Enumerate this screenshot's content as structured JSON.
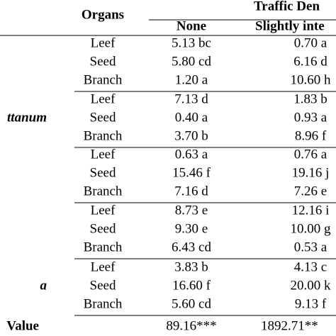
{
  "header": {
    "organs": "Organs",
    "traffic": "Traffic Den",
    "none": "None",
    "slightly": "Slightly inte"
  },
  "groups": [
    {
      "rows": [
        {
          "organ": "Leef",
          "none": "5.13 bc",
          "slightly": "0.70 a"
        },
        {
          "organ": "Seed",
          "none": "5.80 cd",
          "slightly": "6.16 d"
        },
        {
          "organ": "Branch",
          "none": "1.20 a",
          "slightly": "10.60 h"
        }
      ]
    },
    {
      "label": "ttanum",
      "rows": [
        {
          "organ": "Leef",
          "none": "7.13 d",
          "slightly": "1.83 b"
        },
        {
          "organ": "Seed",
          "none": "0.40 a",
          "slightly": "0.93 a"
        },
        {
          "organ": "Branch",
          "none": "3.70 b",
          "slightly": "8.96 f"
        }
      ]
    },
    {
      "rows": [
        {
          "organ": "Leef",
          "none": "0.63 a",
          "slightly": "0.76 a"
        },
        {
          "organ": "Seed",
          "none": "15.46 f",
          "slightly": "19.16 j"
        },
        {
          "organ": "Branch",
          "none": "7.16 d",
          "slightly": "7.26 e"
        }
      ]
    },
    {
      "rows": [
        {
          "organ": "Leef",
          "none": "8.73 e",
          "slightly": "12.16 i"
        },
        {
          "organ": "Seed",
          "none": "9.30 e",
          "slightly": "10.00 g"
        },
        {
          "organ": "Branch",
          "none": "6.43 cd",
          "slightly": "0.53 a"
        }
      ]
    },
    {
      "label": "a",
      "rows": [
        {
          "organ": "Leef",
          "none": "3.83 b",
          "slightly": "4.13 c"
        },
        {
          "organ": "Seed",
          "none": "16.60 f",
          "slightly": "20.00 k"
        },
        {
          "organ": "Branch",
          "none": "5.60 cd",
          "slightly": "9.13 f"
        }
      ]
    }
  ],
  "value_row": {
    "label": "Value",
    "none": "89.16***",
    "slightly": "1892.71**"
  }
}
